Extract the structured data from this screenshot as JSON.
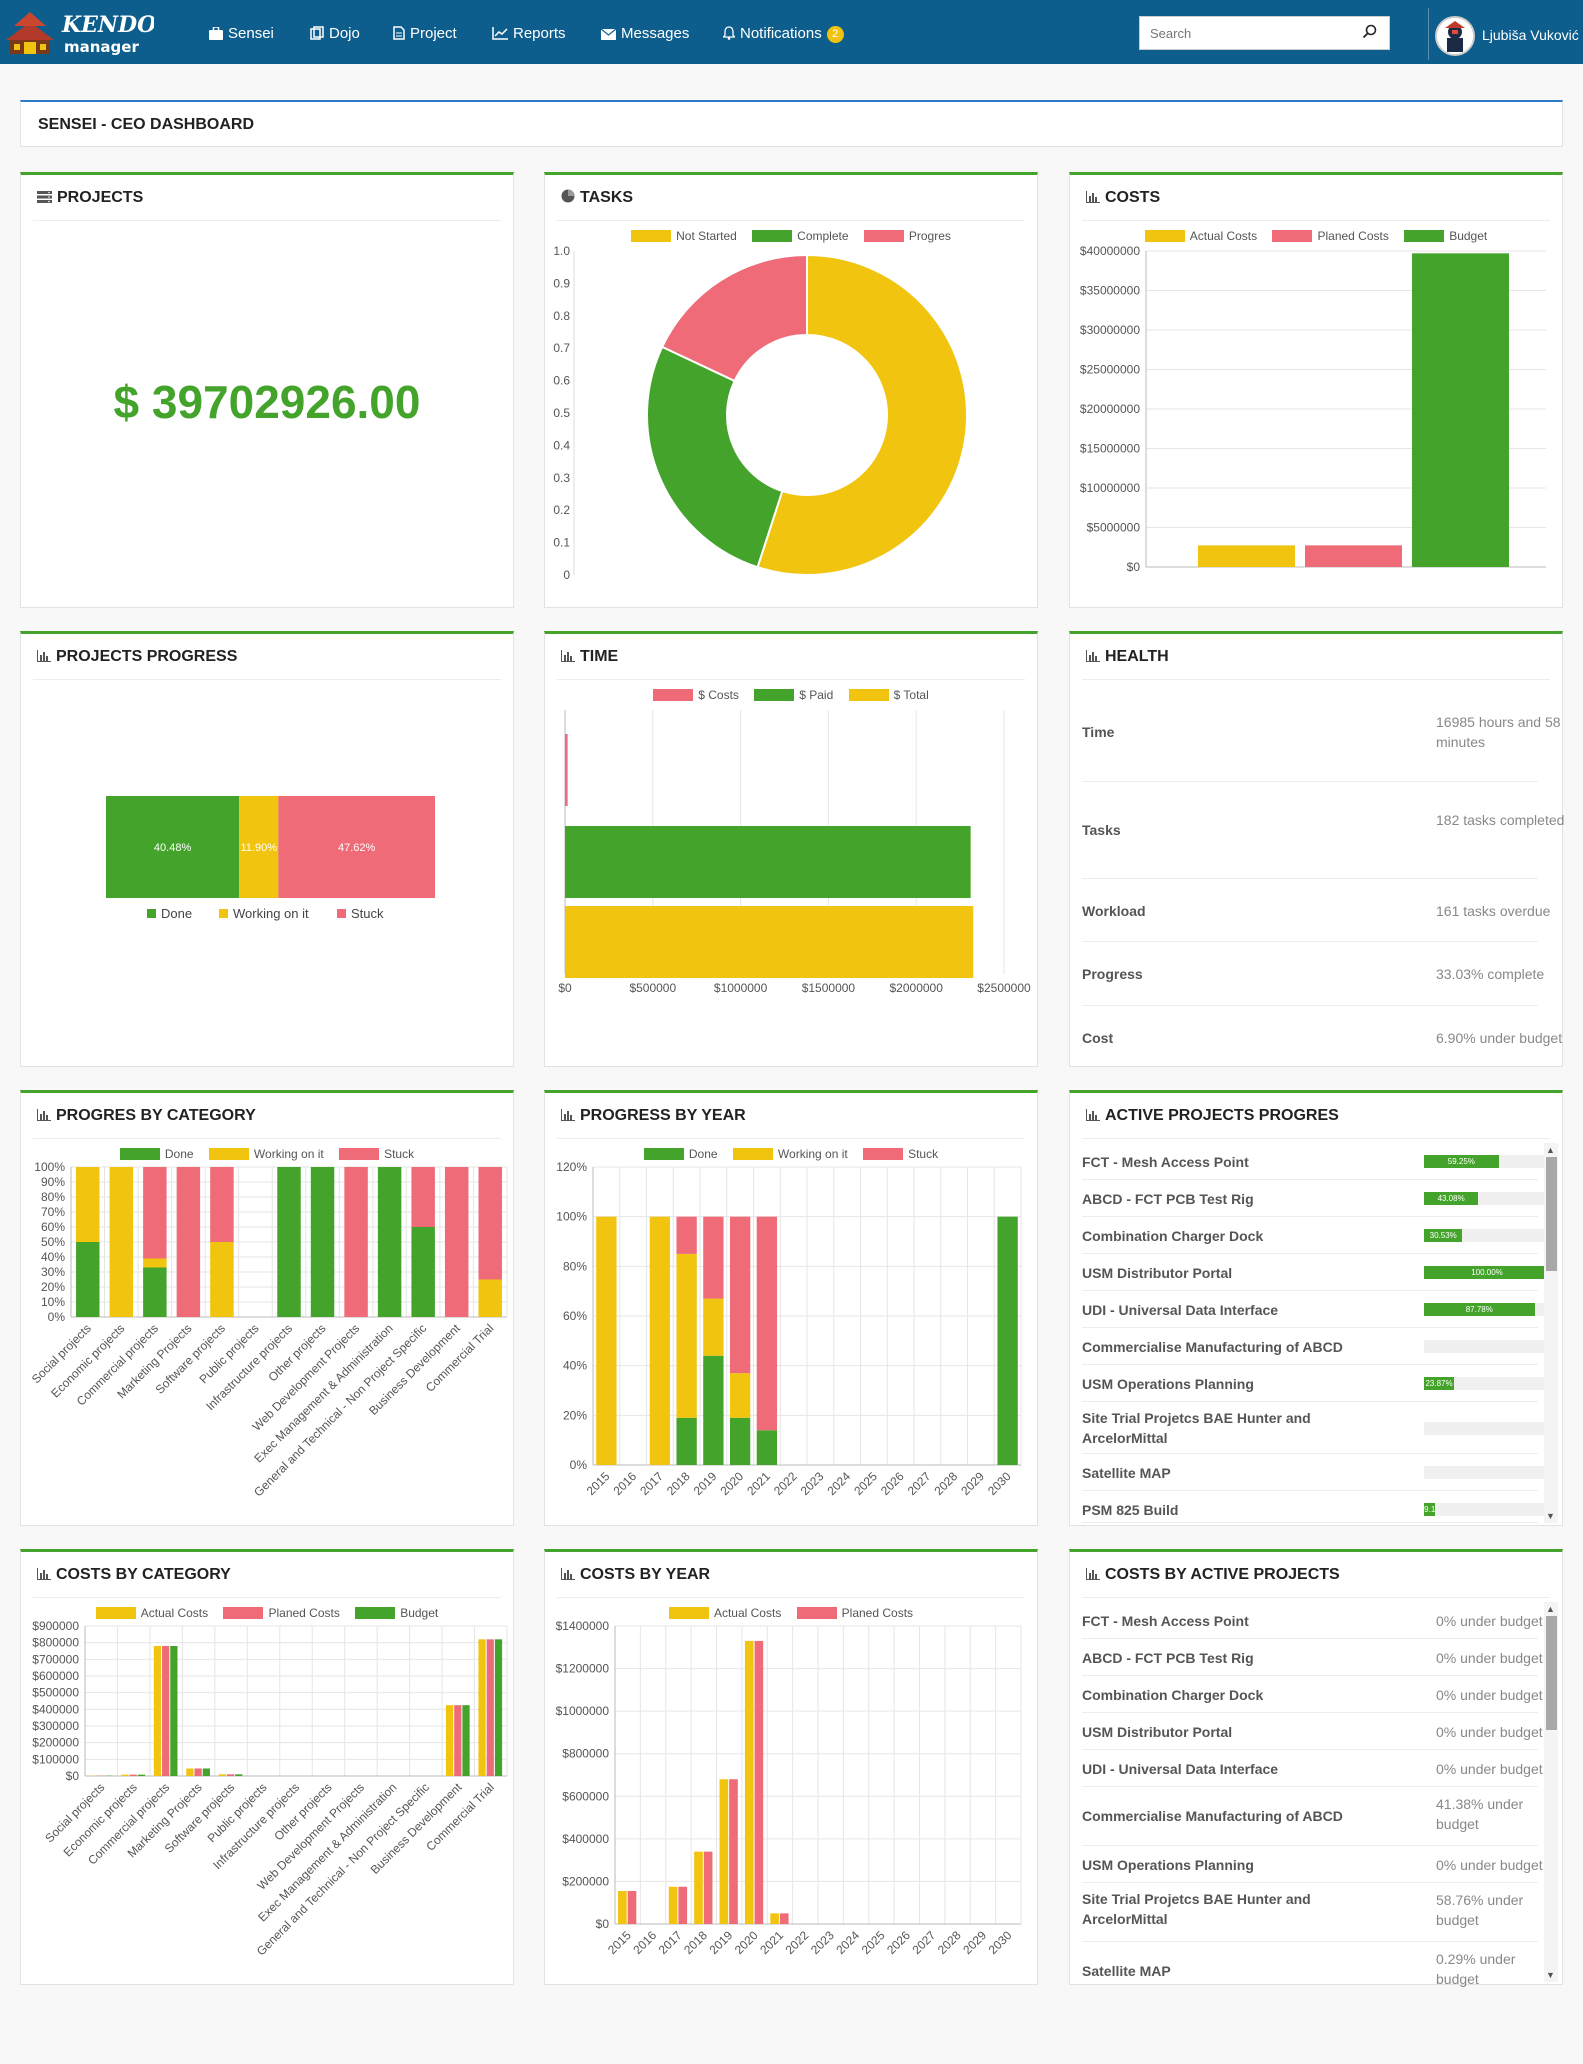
{
  "nav": {
    "items": [
      "Sensei",
      "Dojo",
      "Project",
      "Reports",
      "Messages",
      "Notifications"
    ],
    "notifications_count": "2",
    "search_placeholder": "Search",
    "user_name": "Ljubiša Vuković"
  },
  "page": {
    "title": "SENSEI - CEO DASHBOARD"
  },
  "projects": {
    "title": "PROJECTS",
    "amount": "$ 39702926.00"
  },
  "tasks": {
    "title": "TASKS"
  },
  "costs": {
    "title": "COSTS"
  },
  "projects_progress": {
    "title": "PROJECTS PROGRESS"
  },
  "time": {
    "title": "TIME"
  },
  "health": {
    "title": "HEALTH",
    "rows": [
      {
        "label": "Time",
        "value": "16985 hours and 58 minutes"
      },
      {
        "label": "Tasks",
        "value": "182 tasks completed"
      },
      {
        "label": "Workload",
        "value": "161 tasks overdue"
      },
      {
        "label": "Progress",
        "value": "33.03% complete"
      },
      {
        "label": "Cost",
        "value": "6.90% under budget"
      }
    ]
  },
  "progress_by_category": {
    "title": "PROGRES BY CATEGORY"
  },
  "progress_by_year": {
    "title": "PROGRESS BY YEAR"
  },
  "active_projects": {
    "title": "ACTIVE PROJECTS PROGRES",
    "rows": [
      {
        "name": "FCT - Mesh Access Point",
        "progress": 59.25,
        "label": "59.25%"
      },
      {
        "name": "ABCD - FCT PCB Test Rig",
        "progress": 43.08,
        "label": "43.08%"
      },
      {
        "name": "Combination Charger Dock",
        "progress": 30.53,
        "label": "30.53%"
      },
      {
        "name": "USM Distributor Portal",
        "progress": 100,
        "label": "100.00%"
      },
      {
        "name": "UDI - Universal Data Interface",
        "progress": 87.78,
        "label": "87.78%"
      },
      {
        "name": "Commercialise Manufacturing of ABCD",
        "progress": 0,
        "label": ""
      },
      {
        "name": "USM Operations Planning",
        "progress": 23.87,
        "label": "23.87%"
      },
      {
        "name": "Site Trial Projetcs BAE Hunter and ArcelorMittal",
        "progress": 0,
        "label": ""
      },
      {
        "name": "Satellite MAP",
        "progress": 0,
        "label": ""
      },
      {
        "name": "PSM 825 Build",
        "progress": 9.1,
        "label": "9.1"
      }
    ]
  },
  "costs_by_category": {
    "title": "COSTS BY CATEGORY"
  },
  "costs_by_year": {
    "title": "COSTS BY YEAR"
  },
  "costs_by_active": {
    "title": "COSTS BY ACTIVE PROJECTS",
    "rows": [
      {
        "name": "FCT - Mesh Access Point",
        "value": "0% under budget"
      },
      {
        "name": "ABCD - FCT PCB Test Rig",
        "value": "0% under budget"
      },
      {
        "name": "Combination Charger Dock",
        "value": "0% under budget"
      },
      {
        "name": "USM Distributor Portal",
        "value": "0% under budget"
      },
      {
        "name": "UDI - Universal Data Interface",
        "value": "0% under budget"
      },
      {
        "name": "Commercialise Manufacturing of ABCD",
        "value": "41.38% under budget"
      },
      {
        "name": "USM Operations Planning",
        "value": "0% under budget"
      },
      {
        "name": "Site Trial Projetcs BAE Hunter and ArcelorMittal",
        "value": "58.76% under budget"
      },
      {
        "name": "Satellite MAP",
        "value": "0.29% under budget"
      }
    ]
  },
  "colors": {
    "yellow": "#f1c40f",
    "green": "#43a32b",
    "red": "#ee6b77",
    "nav": "#0d5e8c"
  },
  "chart_data": [
    {
      "id": "tasks",
      "type": "doughnut",
      "labels": [
        "Not Started",
        "Complete",
        "Progres"
      ],
      "series": [
        {
          "name": "",
          "values": [
            0.55,
            0.27,
            0.18
          ]
        }
      ],
      "ylim": [
        0,
        1
      ],
      "yticks": [
        "0",
        "0.1",
        "0.2",
        "0.3",
        "0.4",
        "0.5",
        "0.6",
        "0.7",
        "0.8",
        "0.9",
        "1.0"
      ]
    },
    {
      "id": "costs",
      "type": "bar",
      "series": [
        {
          "name": "Actual Costs",
          "values": [
            2740000
          ]
        },
        {
          "name": "Planed Costs",
          "values": [
            2740000
          ]
        },
        {
          "name": "Budget",
          "values": [
            39702926
          ]
        }
      ],
      "ylim": [
        0,
        40000000
      ],
      "yticks": [
        "$0",
        "$5000000",
        "$10000000",
        "$15000000",
        "$20000000",
        "$25000000",
        "$30000000",
        "$35000000",
        "$40000000"
      ]
    },
    {
      "id": "projects_progress",
      "type": "bar",
      "orientation": "horizontal-stacked",
      "series": [
        {
          "name": "Done",
          "values": [
            40.48
          ],
          "label": "40.48%"
        },
        {
          "name": "Working on it",
          "values": [
            11.9
          ],
          "label": "11.90%"
        },
        {
          "name": "Stuck",
          "values": [
            47.62
          ],
          "label": "47.62%"
        }
      ]
    },
    {
      "id": "time",
      "type": "bar",
      "orientation": "horizontal",
      "series": [
        {
          "name": "$ Costs",
          "values": [
            15000
          ]
        },
        {
          "name": "$ Paid",
          "values": [
            2310000
          ]
        },
        {
          "name": "$ Total",
          "values": [
            2325000
          ]
        }
      ],
      "xlim": [
        0,
        2500000
      ],
      "xticks": [
        "$0",
        "$500000",
        "$1000000",
        "$1500000",
        "$2000000",
        "$2500000"
      ]
    },
    {
      "id": "progress_by_category",
      "type": "bar",
      "stacked": true,
      "categories": [
        "Social projects",
        "Economic projects",
        "Commercial projects",
        "Marketing Projects",
        "Software projects",
        "Public projects",
        "Infrastructure projects",
        "Other projects",
        "Web Development Projects",
        "Exec Management & Administration",
        "General and Technical - Non Project Specific",
        "Business Development",
        "Commercial Trial"
      ],
      "series": [
        {
          "name": "Done",
          "values": [
            50,
            0,
            33,
            0,
            0,
            0,
            100,
            100,
            0,
            100,
            60,
            0,
            0
          ]
        },
        {
          "name": "Working on it",
          "values": [
            50,
            100,
            6,
            0,
            50,
            0,
            0,
            0,
            0,
            0,
            0,
            0,
            25
          ]
        },
        {
          "name": "Stuck",
          "values": [
            0,
            0,
            61,
            100,
            50,
            0,
            0,
            0,
            100,
            0,
            40,
            100,
            75
          ]
        }
      ],
      "ylim": [
        0,
        100
      ],
      "yticks": [
        "0%",
        "10%",
        "20%",
        "30%",
        "40%",
        "50%",
        "60%",
        "70%",
        "80%",
        "90%",
        "100%"
      ]
    },
    {
      "id": "progress_by_year",
      "type": "bar",
      "stacked": true,
      "categories": [
        "2015",
        "2016",
        "2017",
        "2018",
        "2019",
        "2020",
        "2021",
        "2022",
        "2023",
        "2024",
        "2025",
        "2026",
        "2027",
        "2028",
        "2029",
        "2030"
      ],
      "series": [
        {
          "name": "Done",
          "values": [
            0,
            0,
            0,
            19,
            44,
            19,
            14,
            0,
            0,
            0,
            0,
            0,
            0,
            0,
            0,
            100
          ]
        },
        {
          "name": "Working on it",
          "values": [
            100,
            0,
            100,
            66,
            23,
            18,
            0,
            0,
            0,
            0,
            0,
            0,
            0,
            0,
            0,
            0
          ]
        },
        {
          "name": "Stuck",
          "values": [
            0,
            0,
            0,
            15,
            33,
            63,
            86,
            0,
            0,
            0,
            0,
            0,
            0,
            0,
            0,
            0
          ]
        }
      ],
      "ylim": [
        0,
        120
      ],
      "yticks": [
        "0%",
        "20%",
        "40%",
        "60%",
        "80%",
        "100%",
        "120%"
      ]
    },
    {
      "id": "costs_by_category",
      "type": "bar",
      "categories": [
        "Social projects",
        "Economic projects",
        "Commercial projects",
        "Marketing Projects",
        "Software projects",
        "Public projects",
        "Infrastructure projects",
        "Other projects",
        "Web Development Projects",
        "Exec Management & Administration",
        "General and Technical - Non Project Specific",
        "Business Development",
        "Commercial Trial"
      ],
      "series": [
        {
          "name": "Actual Costs",
          "values": [
            2000,
            8000,
            780000,
            45000,
            10000,
            0,
            0,
            0,
            0,
            0,
            0,
            425000,
            820000
          ]
        },
        {
          "name": "Planed Costs",
          "values": [
            2000,
            8000,
            780000,
            45000,
            10000,
            0,
            0,
            0,
            0,
            0,
            0,
            425000,
            820000
          ]
        },
        {
          "name": "Budget",
          "values": [
            2000,
            8000,
            780000,
            45000,
            10000,
            0,
            0,
            0,
            0,
            0,
            0,
            425000,
            820000
          ]
        }
      ],
      "ylim": [
        0,
        900000
      ],
      "yticks": [
        "$0",
        "$100000",
        "$200000",
        "$300000",
        "$400000",
        "$500000",
        "$600000",
        "$700000",
        "$800000",
        "$900000"
      ]
    },
    {
      "id": "costs_by_year",
      "type": "bar",
      "categories": [
        "2015",
        "2016",
        "2017",
        "2018",
        "2019",
        "2020",
        "2021",
        "2022",
        "2023",
        "2024",
        "2025",
        "2026",
        "2027",
        "2028",
        "2029",
        "2030"
      ],
      "series": [
        {
          "name": "Actual Costs",
          "values": [
            155000,
            0,
            175000,
            340000,
            680000,
            1330000,
            50000,
            0,
            0,
            0,
            0,
            0,
            0,
            0,
            0,
            0
          ]
        },
        {
          "name": "Planed Costs",
          "values": [
            155000,
            0,
            175000,
            340000,
            680000,
            1330000,
            50000,
            0,
            0,
            0,
            0,
            0,
            0,
            0,
            0,
            0
          ]
        }
      ],
      "ylim": [
        0,
        1400000
      ],
      "yticks": [
        "$0",
        "$200000",
        "$400000",
        "$600000",
        "$800000",
        "$1000000",
        "$1200000",
        "$1400000"
      ]
    }
  ]
}
